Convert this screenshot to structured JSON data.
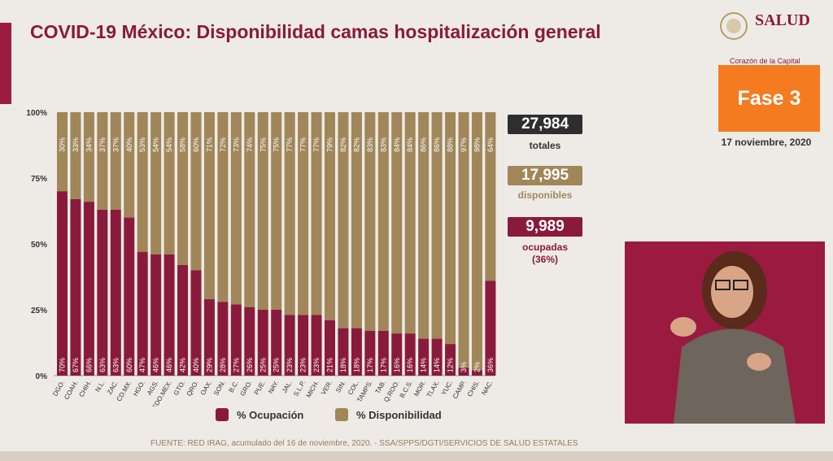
{
  "title": "COVID-19 México: Disponibilidad camas hospitalización general",
  "logo": {
    "name": "SALUD",
    "subtitle": "Corazón de la Capital"
  },
  "phase": "Fase 3",
  "date": "17 noviembre, 2020",
  "stats": {
    "total": {
      "value": "27,984",
      "label": "totales"
    },
    "available": {
      "value": "17,995",
      "label": "disponibles"
    },
    "occupied": {
      "value": "9,989",
      "label": "ocupadas",
      "pct": "(36%)"
    }
  },
  "legend": {
    "occupied": "% Ocupación",
    "available": "% Disponibilidad"
  },
  "footer": "FUENTE: RED IRAG, acumulado del 16 de noviembre, 2020. - SSA/SPPS/DGTI/SERVICIOS DE SALUD ESTATALES",
  "colors": {
    "occupied": "#8a1a3b",
    "available": "#a08659",
    "total_box": "#2e2e2e",
    "phase": "#f47b20"
  },
  "chart_data": {
    "type": "bar",
    "stacked": true,
    "percent_axis": true,
    "y_ticks": [
      "0%",
      "25%",
      "50%",
      "75%",
      "100%"
    ],
    "ylim": [
      0,
      100
    ],
    "categories": [
      "DGO.",
      "COAH.",
      "CHIH.",
      "N.L.",
      "ZAC.",
      "CD.MX.",
      "HGO.",
      "AGS.",
      "EDO.MEX.",
      "GTO.",
      "QRO.",
      "OAX.",
      "SON.",
      "B.C.",
      "GRO.",
      "PUE.",
      "NAY.",
      "JAL.",
      "S.L.P.",
      "MICH.",
      "VER.",
      "SIN.",
      "COL.",
      "TAMPS.",
      "TAB.",
      "Q.ROO.",
      "B.C.S.",
      "MOR.",
      "TLAX.",
      "YUC.",
      "CAMP.",
      "CHIS.",
      "NAC."
    ],
    "series": [
      {
        "name": "% Ocupación",
        "values": [
          70,
          67,
          66,
          63,
          63,
          60,
          47,
          46,
          46,
          42,
          40,
          29,
          28,
          27,
          26,
          25,
          25,
          23,
          23,
          23,
          21,
          18,
          18,
          17,
          17,
          16,
          16,
          14,
          14,
          12,
          3,
          2,
          36
        ]
      },
      {
        "name": "% Disponibilidad",
        "values": [
          30,
          33,
          34,
          37,
          37,
          40,
          53,
          54,
          54,
          58,
          60,
          71,
          72,
          73,
          74,
          75,
          75,
          77,
          77,
          77,
          79,
          82,
          82,
          83,
          83,
          84,
          84,
          86,
          86,
          88,
          97,
          98,
          64
        ]
      }
    ],
    "occupied_labels": [
      "70%",
      "67%",
      "66%",
      "63%",
      "63%",
      "60%",
      "47%",
      "46%",
      "46%",
      "42%",
      "40%",
      "29%",
      "28%",
      "27%",
      "26%",
      "25%",
      "25%",
      "23%",
      "23%",
      "23%",
      "21%",
      "18%",
      "18%",
      "17%",
      "17%",
      "16%",
      "16%",
      "14%",
      "14%",
      "12%",
      "3%",
      "2%",
      "36%"
    ],
    "available_labels": [
      "30%",
      "33%",
      "34%",
      "37%",
      "37%",
      "40%",
      "53%",
      "54%",
      "54%",
      "58%",
      "60%",
      "71%",
      "72%",
      "73%",
      "74%",
      "75%",
      "75%",
      "77%",
      "77%",
      "77%",
      "79%",
      "82%",
      "82%",
      "83%",
      "83%",
      "84%",
      "84%",
      "86%",
      "86%",
      "88%",
      "97%",
      "98%",
      "64%"
    ]
  }
}
